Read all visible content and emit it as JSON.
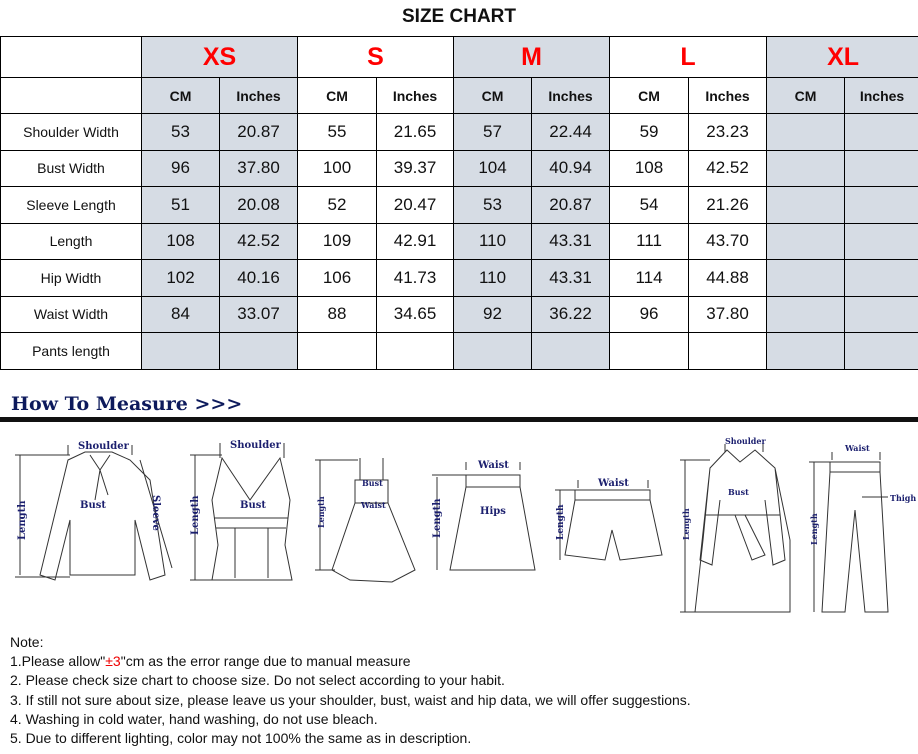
{
  "title": "SIZE CHART",
  "sizes": [
    "XS",
    "S",
    "M",
    "L",
    "XL"
  ],
  "units": [
    "CM",
    "Inches"
  ],
  "rows": [
    {
      "label": "Shoulder Width",
      "values": [
        "53",
        "20.87",
        "55",
        "21.65",
        "57",
        "22.44",
        "59",
        "23.23",
        "",
        ""
      ]
    },
    {
      "label": "Bust Width",
      "values": [
        "96",
        "37.80",
        "100",
        "39.37",
        "104",
        "40.94",
        "108",
        "42.52",
        "",
        ""
      ]
    },
    {
      "label": "Sleeve Length",
      "values": [
        "51",
        "20.08",
        "52",
        "20.47",
        "53",
        "20.87",
        "54",
        "21.26",
        "",
        ""
      ]
    },
    {
      "label": "Length",
      "values": [
        "108",
        "42.52",
        "109",
        "42.91",
        "110",
        "43.31",
        "111",
        "43.70",
        "",
        ""
      ]
    },
    {
      "label": "Hip Width",
      "values": [
        "102",
        "40.16",
        "106",
        "41.73",
        "110",
        "43.31",
        "114",
        "44.88",
        "",
        ""
      ]
    },
    {
      "label": "Waist Width",
      "values": [
        "84",
        "33.07",
        "88",
        "34.65",
        "92",
        "36.22",
        "96",
        "37.80",
        "",
        ""
      ]
    },
    {
      "label": "Pants length",
      "values": [
        "",
        "",
        "",
        "",
        "",
        "",
        "",
        "",
        "",
        ""
      ]
    }
  ],
  "shade_color": "#d6dce4",
  "size_color": "#ff0000",
  "how_to_measure": "How To Measure >>>",
  "labels": {
    "shoulder": "Shoulder",
    "bust": "Bust",
    "sleeve": "Sleeve",
    "length": "Length",
    "waist": "Waist",
    "hips": "Hips",
    "thigh": "Thigh"
  },
  "notes": {
    "heading": "Note:",
    "n1_pre": "1.Please allow\"",
    "n1_red": "±3",
    "n1_post": "\"cm as the error range due to manual measure",
    "n2": "2. Please check size chart to choose size. Do not select according to your habit.",
    "n3": "3. If still not sure about size, please leave us your shoulder, bust, waist and hip data, we will offer suggestions.",
    "n4": "4. Washing in cold water, hand washing, do not use bleach.",
    "n5": "5. Due to different lighting, color may not 100% the same as in description."
  }
}
